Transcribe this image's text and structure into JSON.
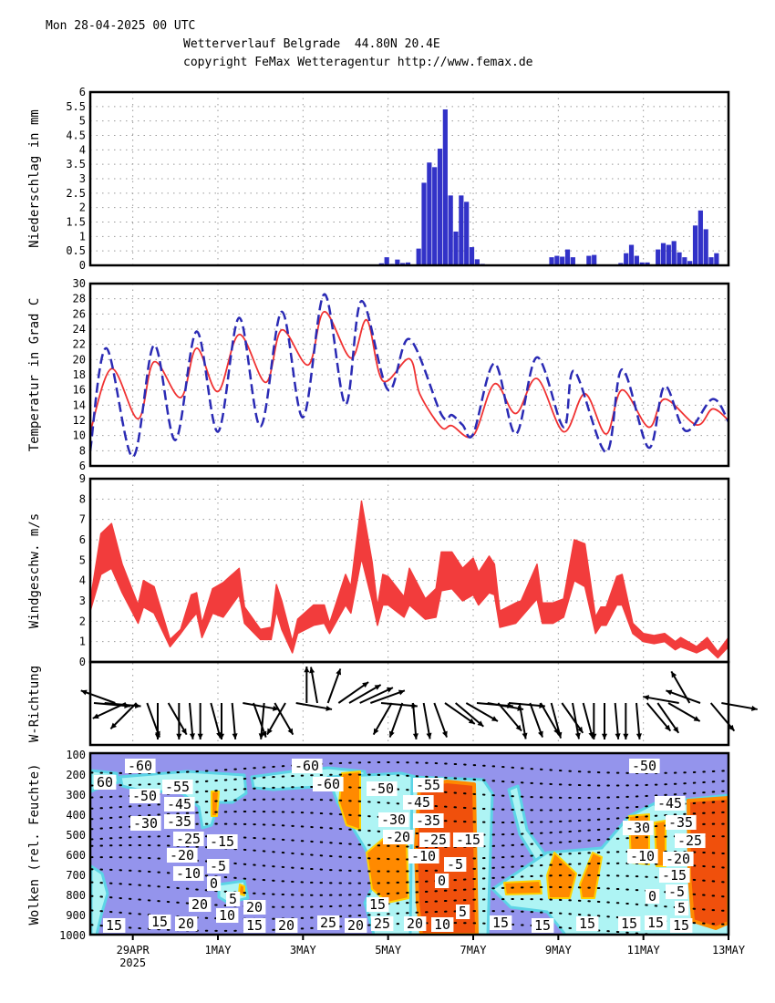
{
  "header": {
    "date_line": "Mon 28-04-2025 00 UTC",
    "title_line": "Wetterverlauf Belgrade  44.80N 20.4E",
    "copyright_line": "copyright FeMax Wetteragentur http://www.femax.de"
  },
  "x_axis": {
    "ticks": [
      "29APR",
      "1MAY",
      "3MAY",
      "5MAY",
      "7MAY",
      "9MAY",
      "11MAY",
      "13MAY"
    ],
    "tick_times": [
      "04-29 00",
      "05-01 00",
      "05-03 00",
      "05-05 00",
      "05-07 00",
      "05-09 00",
      "05-11 00",
      "05-13 00"
    ],
    "year_label": "2025",
    "range": [
      "04-28 00",
      "05-13 00"
    ]
  },
  "colors": {
    "precip": "#3232c8",
    "temp_red": "#f03232",
    "temp_blue": "#2a2ab4",
    "wind": "#f23c3c",
    "cloud_background": "#9494ec",
    "cloud_cyan": "#aef4f4",
    "cloud_cyan_edge": "#5cd4e6",
    "cloud_orange": "#ff8a00",
    "cloud_red": "#f0500c",
    "cloud_yellow": "#ffd200"
  },
  "chart_data": [
    {
      "type": "bar",
      "ylabel": "Niederschlag in mm",
      "ylim": [
        0,
        6
      ],
      "yticks": [
        "0",
        "0.5",
        "1",
        "1.5",
        "2",
        "2.5",
        "3",
        "3.5",
        "4",
        "4.5",
        "5",
        "5.5",
        "6"
      ],
      "grid": true,
      "x_start": "04-28 00",
      "step_hours": 3,
      "values": [
        0,
        0,
        0,
        0,
        0,
        0,
        0,
        0,
        0,
        0,
        0,
        0,
        0,
        0,
        0,
        0,
        0,
        0,
        0,
        0,
        0,
        0,
        0,
        0,
        0,
        0,
        0,
        0,
        0,
        0,
        0,
        0,
        0,
        0,
        0,
        0,
        0,
        0,
        0,
        0,
        0,
        0,
        0,
        0,
        0,
        0,
        0,
        0,
        0,
        0,
        0,
        0,
        0,
        0.03,
        0.07,
        0.28,
        0.05,
        0.2,
        0.08,
        0.1,
        0,
        0.58,
        2.86,
        3.56,
        3.4,
        4.04,
        5.4,
        2.42,
        1.17,
        2.42,
        2.2,
        0.63,
        0.21,
        0.05,
        0,
        0,
        0,
        0,
        0,
        0,
        0,
        0,
        0,
        0,
        0,
        0.03,
        0.28,
        0.33,
        0.3,
        0.55,
        0.28,
        0,
        0,
        0.33,
        0.36,
        0,
        0,
        0,
        0,
        0.08,
        0.42,
        0.71,
        0.33,
        0.1,
        0.1,
        0,
        0.55,
        0.77,
        0.71,
        0.84,
        0.45,
        0.28,
        0.15,
        1.38,
        1.9,
        1.25,
        0.28,
        0.42,
        0,
        0.03
      ]
    },
    {
      "type": "line",
      "ylabel": "Temperatur in Grad C",
      "ylim": [
        6,
        30
      ],
      "yticks": [
        "6",
        "8",
        "10",
        "12",
        "14",
        "16",
        "18",
        "20",
        "22",
        "24",
        "26",
        "28",
        "30"
      ],
      "grid": true,
      "series": [
        {
          "style": "solid-red",
          "points": [
            [
              "04-28 00",
              10.5
            ],
            [
              "04-28 12",
              18.8
            ],
            [
              "04-29 03",
              12.2
            ],
            [
              "04-29 12",
              19.7
            ],
            [
              "04-30 03",
              15.0
            ],
            [
              "04-30 12",
              21.5
            ],
            [
              "05-01 00",
              15.8
            ],
            [
              "05-01 12",
              23.3
            ],
            [
              "05-02 03",
              17.0
            ],
            [
              "05-02 12",
              23.9
            ],
            [
              "05-03 03",
              19.3
            ],
            [
              "05-03 12",
              26.3
            ],
            [
              "05-04 03",
              20.2
            ],
            [
              "05-04 12",
              25.2
            ],
            [
              "05-04 21",
              17.2
            ],
            [
              "05-05 12",
              20.1
            ],
            [
              "05-05 18",
              15.4
            ],
            [
              "05-06 06",
              11.1
            ],
            [
              "05-06 12",
              11.3
            ],
            [
              "05-07 00",
              10.0
            ],
            [
              "05-07 12",
              16.8
            ],
            [
              "05-08 00",
              12.9
            ],
            [
              "05-08 12",
              17.5
            ],
            [
              "05-09 03",
              10.5
            ],
            [
              "05-09 15",
              15.5
            ],
            [
              "05-10 03",
              10.2
            ],
            [
              "05-10 12",
              16.0
            ],
            [
              "05-11 03",
              11.1
            ],
            [
              "05-11 12",
              14.8
            ],
            [
              "05-12 06",
              11.4
            ],
            [
              "05-12 15",
              13.5
            ],
            [
              "05-13 00",
              12.0
            ]
          ]
        },
        {
          "style": "dashed-blue",
          "points": [
            [
              "04-28 00",
              8.0
            ],
            [
              "04-28 09",
              21.5
            ],
            [
              "04-29 00",
              7.2
            ],
            [
              "04-29 12",
              21.9
            ],
            [
              "04-30 00",
              9.4
            ],
            [
              "04-30 12",
              23.7
            ],
            [
              "05-01 00",
              10.5
            ],
            [
              "05-01 12",
              25.5
            ],
            [
              "05-02 00",
              11.2
            ],
            [
              "05-02 12",
              26.3
            ],
            [
              "05-03 00",
              12.4
            ],
            [
              "05-03 12",
              28.6
            ],
            [
              "05-04 00",
              14.1
            ],
            [
              "05-04 09",
              27.7
            ],
            [
              "05-05 00",
              16.0
            ],
            [
              "05-05 12",
              22.7
            ],
            [
              "05-06 06",
              12.8
            ],
            [
              "05-06 12",
              12.7
            ],
            [
              "05-06 18",
              11.4
            ],
            [
              "05-07 00",
              10.2
            ],
            [
              "05-07 12",
              19.5
            ],
            [
              "05-08 00",
              10.2
            ],
            [
              "05-08 12",
              20.3
            ],
            [
              "05-09 03",
              11.1
            ],
            [
              "05-09 09",
              18.5
            ],
            [
              "05-10 03",
              7.8
            ],
            [
              "05-10 12",
              18.7
            ],
            [
              "05-11 03",
              8.4
            ],
            [
              "05-11 12",
              16.5
            ],
            [
              "05-12 00",
              10.6
            ],
            [
              "05-12 15",
              14.8
            ],
            [
              "05-13 00",
              11.8
            ]
          ]
        }
      ]
    },
    {
      "type": "area",
      "ylabel": "Windgeschw. m/s",
      "ylim": [
        0,
        9
      ],
      "yticks": [
        "0",
        "1",
        "2",
        "3",
        "4",
        "5",
        "6",
        "7",
        "8",
        "9"
      ],
      "grid": true,
      "band": [
        [
          "04-28 00",
          3.0,
          2.5
        ],
        [
          "04-28 06",
          6.3,
          4.3
        ],
        [
          "04-28 12",
          6.8,
          4.6
        ],
        [
          "04-28 18",
          4.8,
          3.4
        ],
        [
          "04-29 03",
          2.8,
          1.9
        ],
        [
          "04-29 06",
          4.0,
          2.7
        ],
        [
          "04-29 12",
          3.7,
          2.4
        ],
        [
          "04-29 21",
          1.1,
          0.75
        ],
        [
          "04-30 03",
          1.6,
          1.4
        ],
        [
          "04-30 09",
          3.3,
          2.1
        ],
        [
          "04-30 12",
          3.4,
          2.4
        ],
        [
          "04-30 15",
          1.9,
          1.2
        ],
        [
          "04-30 21",
          3.6,
          2.4
        ],
        [
          "05-01 03",
          3.9,
          2.2
        ],
        [
          "05-01 12",
          4.6,
          3.3
        ],
        [
          "05-01 15",
          2.7,
          1.9
        ],
        [
          "05-02 00",
          1.6,
          1.1
        ],
        [
          "05-02 06",
          1.7,
          1.1
        ],
        [
          "05-02 09",
          3.8,
          2.5
        ],
        [
          "05-02 12",
          3.0,
          1.6
        ],
        [
          "05-02 18",
          1.0,
          0.45
        ],
        [
          "05-02 21",
          2.1,
          1.4
        ],
        [
          "05-03 06",
          2.8,
          1.8
        ],
        [
          "05-03 12",
          2.8,
          1.9
        ],
        [
          "05-03 15",
          1.9,
          1.4
        ],
        [
          "05-04 00",
          4.3,
          2.8
        ],
        [
          "05-04 03",
          3.7,
          2.4
        ],
        [
          "05-04 09",
          7.9,
          5.1
        ],
        [
          "05-04 15",
          4.9,
          3.0
        ],
        [
          "05-04 18",
          2.7,
          1.8
        ],
        [
          "05-04 21",
          4.3,
          2.8
        ],
        [
          "05-05 00",
          4.2,
          2.8
        ],
        [
          "05-05 09",
          3.2,
          2.2
        ],
        [
          "05-05 12",
          4.6,
          2.8
        ],
        [
          "05-05 21",
          3.1,
          2.1
        ],
        [
          "05-06 03",
          3.6,
          2.2
        ],
        [
          "05-06 06",
          5.4,
          3.5
        ],
        [
          "05-06 12",
          5.4,
          3.6
        ],
        [
          "05-06 18",
          4.6,
          3.0
        ],
        [
          "05-07 00",
          5.1,
          3.3
        ],
        [
          "05-07 03",
          4.4,
          2.8
        ],
        [
          "05-07 09",
          5.2,
          3.4
        ],
        [
          "05-07 12",
          4.8,
          3.3
        ],
        [
          "05-07 15",
          2.5,
          1.7
        ],
        [
          "05-08 00",
          2.9,
          1.9
        ],
        [
          "05-08 03",
          3.0,
          2.2
        ],
        [
          "05-08 12",
          4.8,
          3.1
        ],
        [
          "05-08 15",
          2.9,
          1.9
        ],
        [
          "05-08 21",
          2.9,
          1.9
        ],
        [
          "05-09 03",
          3.1,
          2.2
        ],
        [
          "05-09 09",
          6.0,
          4.0
        ],
        [
          "05-09 15",
          5.8,
          3.7
        ],
        [
          "05-09 21",
          2.2,
          1.4
        ],
        [
          "05-10 00",
          2.7,
          1.8
        ],
        [
          "05-10 03",
          2.7,
          1.8
        ],
        [
          "05-10 09",
          4.2,
          2.8
        ],
        [
          "05-10 12",
          4.3,
          2.8
        ],
        [
          "05-10 18",
          1.9,
          1.4
        ],
        [
          "05-11 00",
          1.4,
          1.0
        ],
        [
          "05-11 06",
          1.3,
          0.9
        ],
        [
          "05-11 12",
          1.4,
          1.0
        ],
        [
          "05-11 18",
          1.0,
          0.6
        ],
        [
          "05-11 21",
          1.2,
          0.75
        ],
        [
          "05-12 06",
          0.75,
          0.45
        ],
        [
          "05-12 12",
          1.2,
          0.7
        ],
        [
          "05-12 18",
          0.5,
          0.2
        ],
        [
          "05-13 00",
          1.2,
          0.75
        ]
      ]
    },
    {
      "type": "scatter",
      "ylabel": "W-Richtung",
      "x_start": "04-28 00",
      "step_hours": 6,
      "arrow_bearing_deg": [
        95,
        95,
        290,
        245,
        225,
        160,
        180,
        150,
        180,
        175,
        180,
        165,
        180,
        175,
        100,
        160,
        185,
        150,
        210,
        100,
        0,
        350,
        20,
        55,
        60,
        65,
        70,
        95,
        210,
        200,
        175,
        170,
        160,
        125,
        130,
        120,
        95,
        100,
        140,
        95,
        170,
        160,
        150,
        165,
        145,
        170,
        165,
        180,
        180,
        175,
        180,
        175,
        140,
        145,
        120,
        280,
        330,
        290,
        140,
        100
      ]
    },
    {
      "type": "heatmap",
      "ylabel": "Wolken (rel. Feuchte)",
      "ylim": [
        1000,
        100
      ],
      "yticks": [
        "100",
        "200",
        "300",
        "400",
        "500",
        "600",
        "700",
        "800",
        "900",
        "1000"
      ],
      "contour_labels": [
        "60",
        "-60",
        "-50",
        "-55",
        "-45",
        "-35",
        "-30",
        "-25",
        "-20",
        "-15",
        "-10",
        "-5",
        "0",
        "5",
        "10",
        "15",
        "15",
        "20",
        "20",
        "15",
        "20",
        "20",
        "-60",
        "-60",
        "25",
        "20",
        "25",
        "-50",
        "15",
        "-55",
        "-45",
        "-35",
        "-30",
        "-25",
        "-20",
        "-15",
        "-10",
        "-5",
        "0",
        "5",
        "10",
        "20",
        "15",
        "15",
        "15",
        "15",
        "15",
        "15",
        "-50",
        "-45",
        "-35",
        "-30",
        "-25",
        "-20",
        "-15",
        "-10",
        "-5",
        "0",
        "5"
      ]
    }
  ]
}
